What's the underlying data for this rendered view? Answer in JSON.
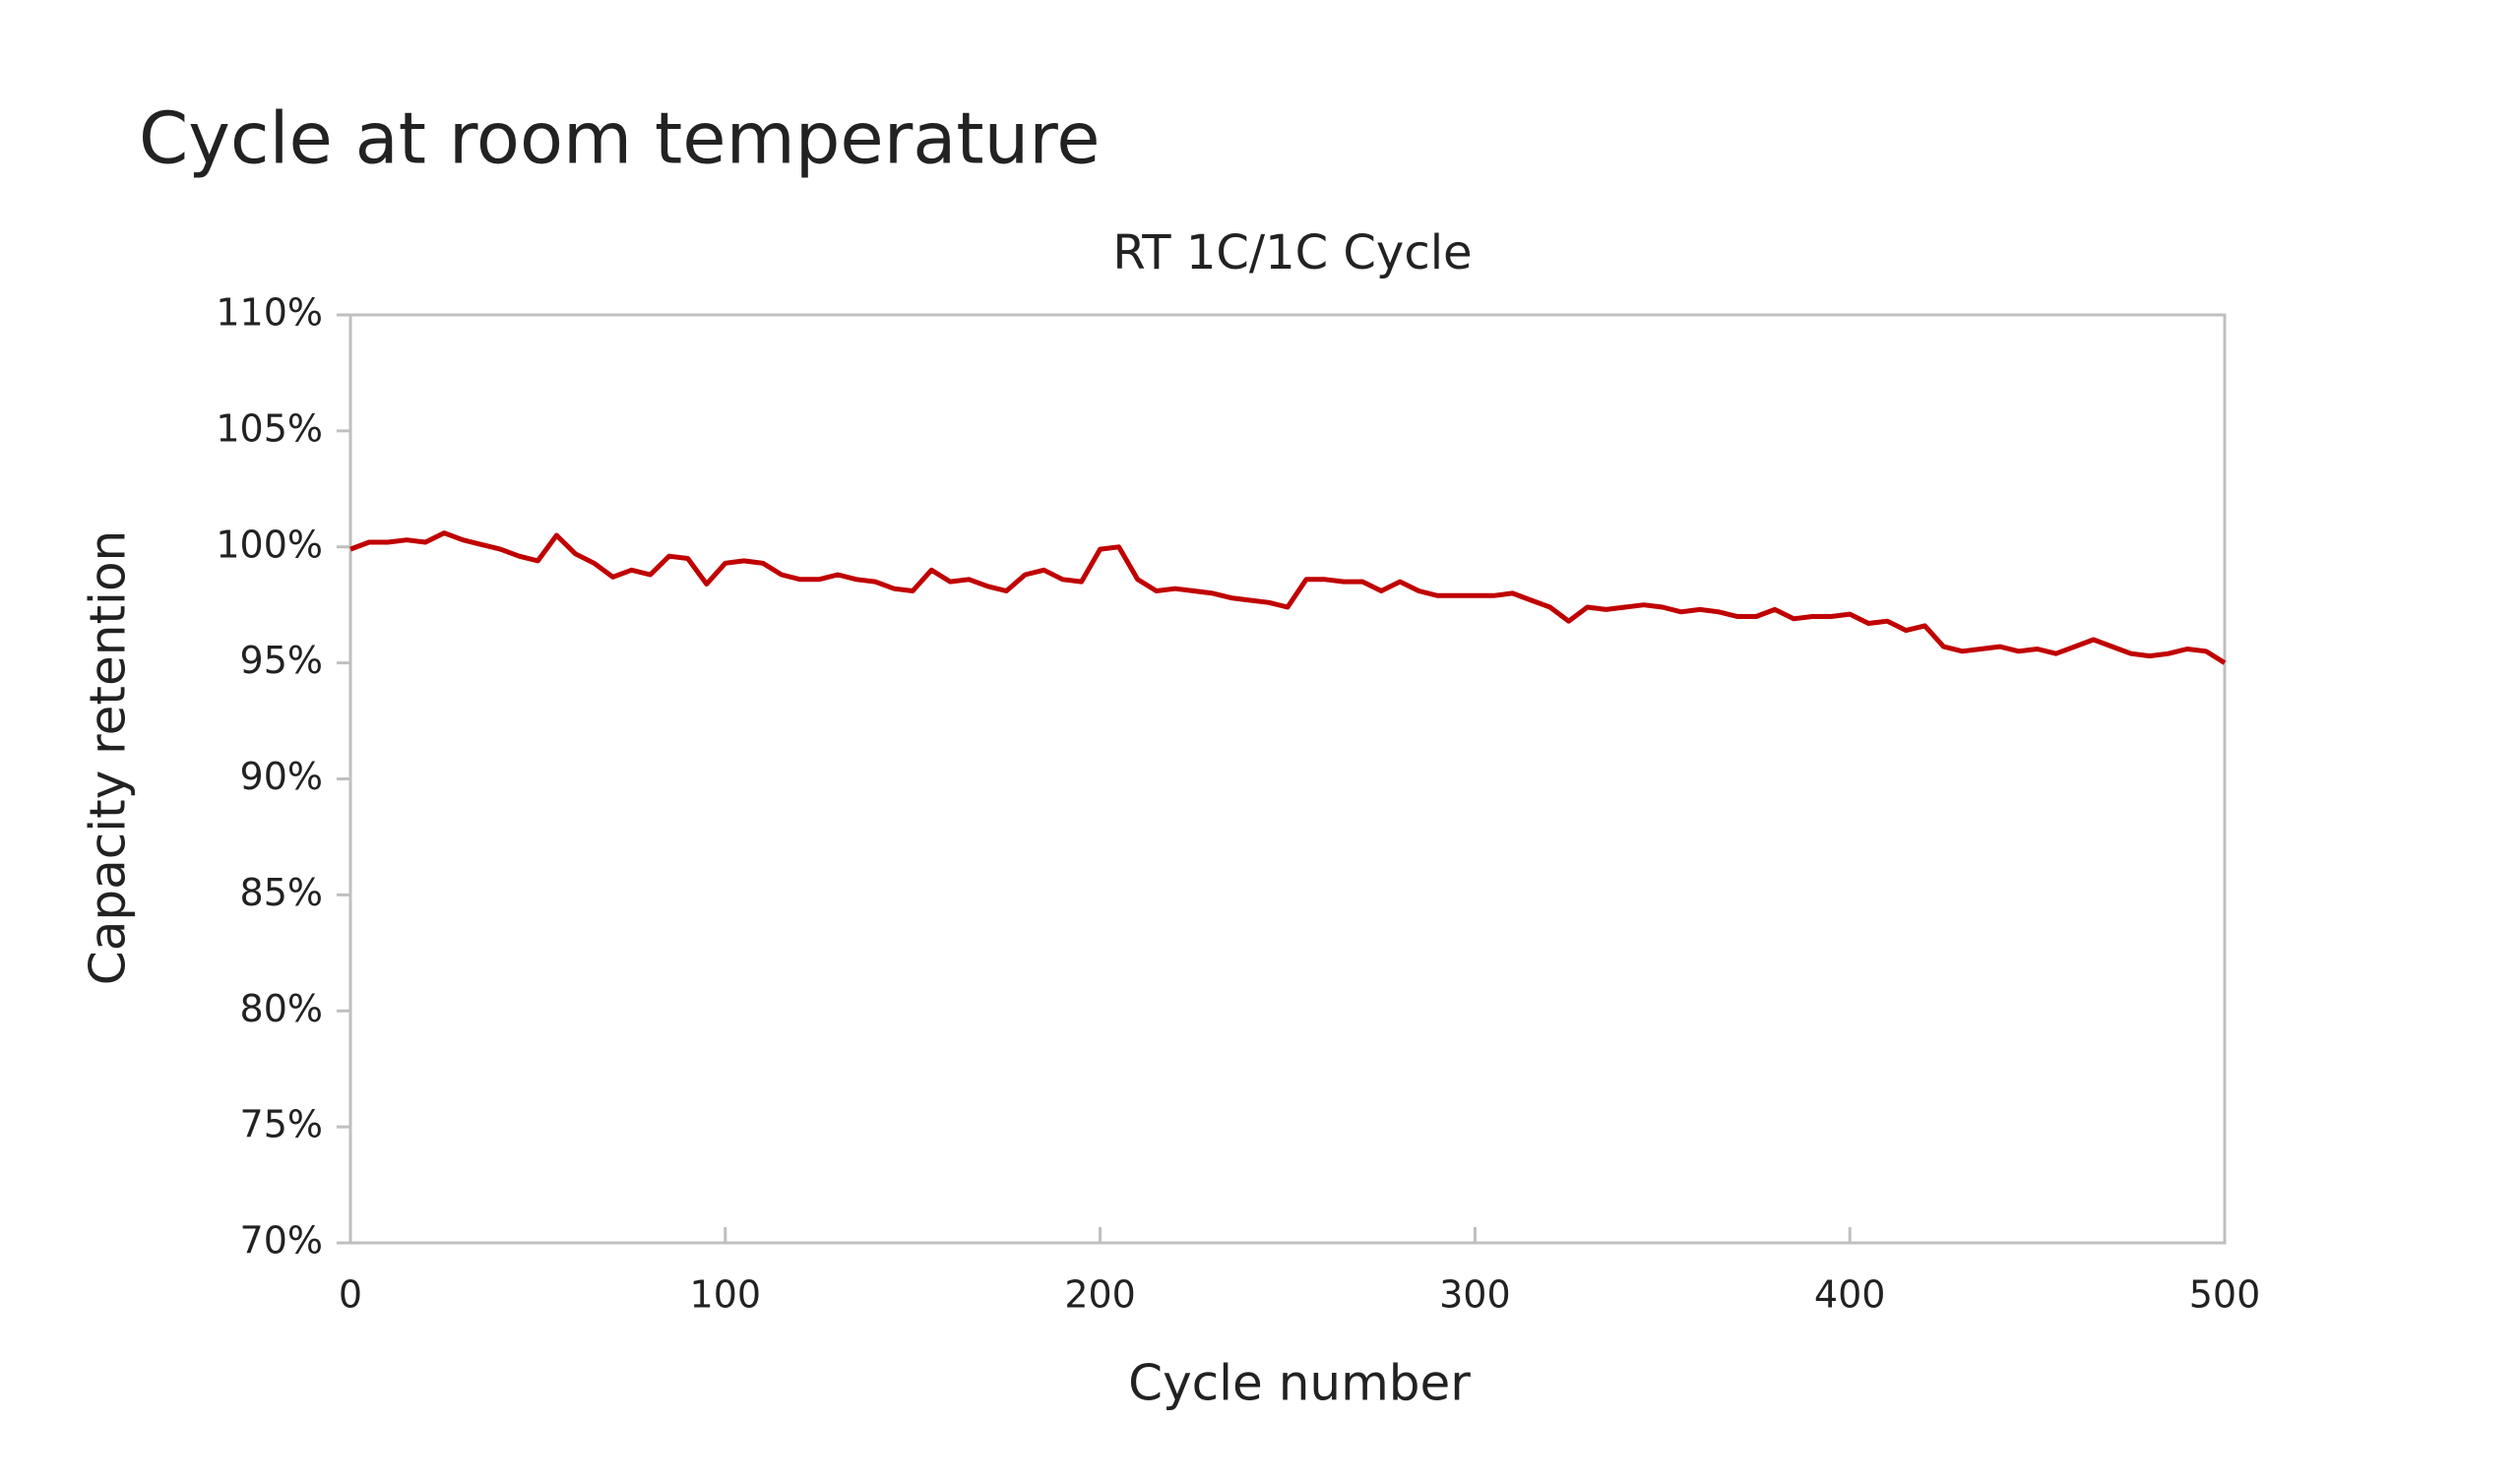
{
  "page_title": "Cycle at room temperature",
  "chart_data": {
    "type": "line",
    "title": "RT 1C/1C Cycle",
    "x_label": "Cycle number",
    "y_label": "Capacity retention",
    "x": [
      0,
      5,
      10,
      15,
      20,
      25,
      30,
      35,
      40,
      45,
      50,
      55,
      60,
      65,
      70,
      75,
      80,
      85,
      90,
      95,
      100,
      105,
      110,
      115,
      120,
      125,
      130,
      135,
      140,
      145,
      150,
      155,
      160,
      165,
      170,
      175,
      180,
      185,
      190,
      195,
      200,
      205,
      210,
      215,
      220,
      225,
      230,
      235,
      240,
      245,
      250,
      255,
      260,
      265,
      270,
      275,
      280,
      285,
      290,
      295,
      300,
      305,
      310,
      315,
      320,
      325,
      330,
      335,
      340,
      345,
      350,
      355,
      360,
      365,
      370,
      375,
      380,
      385,
      390,
      395,
      400,
      405,
      410,
      415,
      420,
      425,
      430,
      435,
      440,
      445,
      450,
      455,
      460,
      465,
      470,
      475,
      480,
      485,
      490,
      495,
      500
    ],
    "series": [
      {
        "name": "RT 1C/1C Cycle",
        "color": "#c00000",
        "values": [
          99.9,
          100.2,
          100.2,
          100.3,
          100.2,
          100.6,
          100.3,
          100.1,
          99.9,
          99.6,
          99.4,
          100.5,
          99.7,
          99.3,
          98.7,
          99.0,
          98.8,
          99.6,
          99.5,
          98.4,
          99.3,
          99.4,
          99.3,
          98.8,
          98.6,
          98.6,
          98.8,
          98.6,
          98.5,
          98.2,
          98.1,
          99.0,
          98.5,
          98.6,
          98.3,
          98.1,
          98.8,
          99.0,
          98.6,
          98.5,
          99.9,
          100.0,
          98.6,
          98.1,
          98.2,
          98.1,
          98.0,
          97.8,
          97.7,
          97.6,
          97.4,
          98.6,
          98.6,
          98.5,
          98.5,
          98.1,
          98.5,
          98.1,
          97.9,
          97.9,
          97.9,
          97.9,
          98.0,
          97.7,
          97.4,
          96.8,
          97.4,
          97.3,
          97.4,
          97.5,
          97.4,
          97.2,
          97.3,
          97.2,
          97.0,
          97.0,
          97.3,
          96.9,
          97.0,
          97.0,
          97.1,
          96.7,
          96.8,
          96.4,
          96.6,
          95.7,
          95.5,
          95.6,
          95.7,
          95.5,
          95.6,
          95.4,
          95.7,
          96.0,
          95.7,
          95.4,
          95.3,
          95.4,
          95.6,
          95.5,
          95.0
        ]
      }
    ],
    "xlim": [
      0,
      500
    ],
    "xticks": [
      0,
      100,
      200,
      300,
      400,
      500
    ],
    "ylim": [
      70,
      110
    ],
    "yticks": [
      {
        "value": 70,
        "label": "70%"
      },
      {
        "value": 75,
        "label": "75%"
      },
      {
        "value": 80,
        "label": "80%"
      },
      {
        "value": 85,
        "label": "85%"
      },
      {
        "value": 90,
        "label": "90%"
      },
      {
        "value": 95,
        "label": "95%"
      },
      {
        "value": 100,
        "label": "100%"
      },
      {
        "value": 105,
        "label": "105%"
      },
      {
        "value": 110,
        "label": "110%"
      }
    ],
    "grid": false
  }
}
